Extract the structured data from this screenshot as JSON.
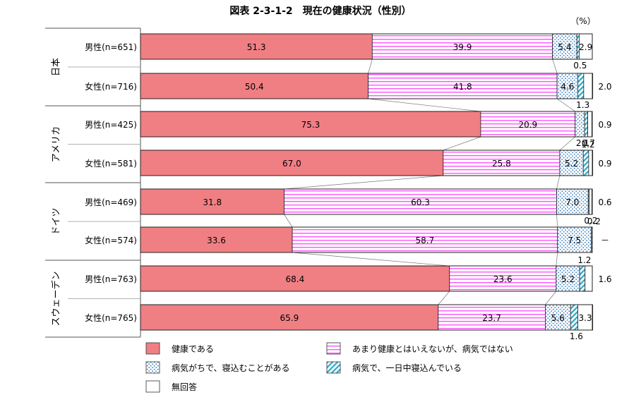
{
  "colors": {
    "healthy": "#f07f84",
    "not_very": "#ff00ff",
    "sick_often": "#4a90c8",
    "bedridden": "#33b3c8",
    "no_answer": "#ffffff"
  },
  "chart_data": {
    "type": "bar",
    "orientation": "horizontal-stacked-100",
    "title": "図表 2-3-1-2　現在の健康状況（性別）",
    "unit": "（%）",
    "groups": [
      "日本",
      "アメリカ",
      "ドイツ",
      "スウェーデン"
    ],
    "categories": [
      "男性(n=651)",
      "女性(n=716)",
      "男性(n=425)",
      "女性(n=581)",
      "男性(n=469)",
      "女性(n=574)",
      "男性(n=763)",
      "女性(n=765)"
    ],
    "category_groups": [
      0,
      0,
      1,
      1,
      2,
      2,
      3,
      3
    ],
    "series": [
      {
        "name": "健康である",
        "values": [
          51.3,
          50.4,
          75.3,
          67.0,
          31.8,
          33.6,
          68.4,
          65.9
        ]
      },
      {
        "name": "あまり健康とはいえないが、病気ではない",
        "values": [
          39.9,
          41.8,
          20.9,
          25.8,
          60.3,
          58.7,
          23.6,
          23.7
        ]
      },
      {
        "name": "病気がちで、寝込むことがある",
        "values": [
          5.4,
          4.6,
          2.1,
          5.2,
          7.0,
          7.5,
          5.2,
          5.6
        ]
      },
      {
        "name": "病気で、一日中寝込んでいる",
        "values": [
          0.5,
          1.3,
          0.7,
          1.2,
          0.2,
          0.2,
          1.2,
          1.6
        ]
      },
      {
        "name": "無回答",
        "values": [
          2.9,
          2.0,
          0.9,
          0.9,
          0.6,
          0,
          1.6,
          3.3
        ]
      }
    ],
    "value_labels": [
      [
        "51.3",
        "39.9",
        "5.4",
        "0.5",
        "2.9"
      ],
      [
        "50.4",
        "41.8",
        "4.6",
        "1.3",
        "2.0"
      ],
      [
        "75.3",
        "20.9",
        "2.1",
        "0.7",
        "0.9"
      ],
      [
        "67.0",
        "25.8",
        "5.2",
        "1.2",
        "0.9"
      ],
      [
        "31.8",
        "60.3",
        "7.0",
        "0.2",
        "0.6"
      ],
      [
        "33.6",
        "58.7",
        "7.5",
        "0.2",
        "－"
      ],
      [
        "68.4",
        "23.6",
        "5.2",
        "1.2",
        "1.6"
      ],
      [
        "65.9",
        "23.7",
        "5.6",
        "1.6",
        "3.3"
      ]
    ],
    "xlim": [
      0,
      100
    ],
    "legend_position": "bottom"
  }
}
